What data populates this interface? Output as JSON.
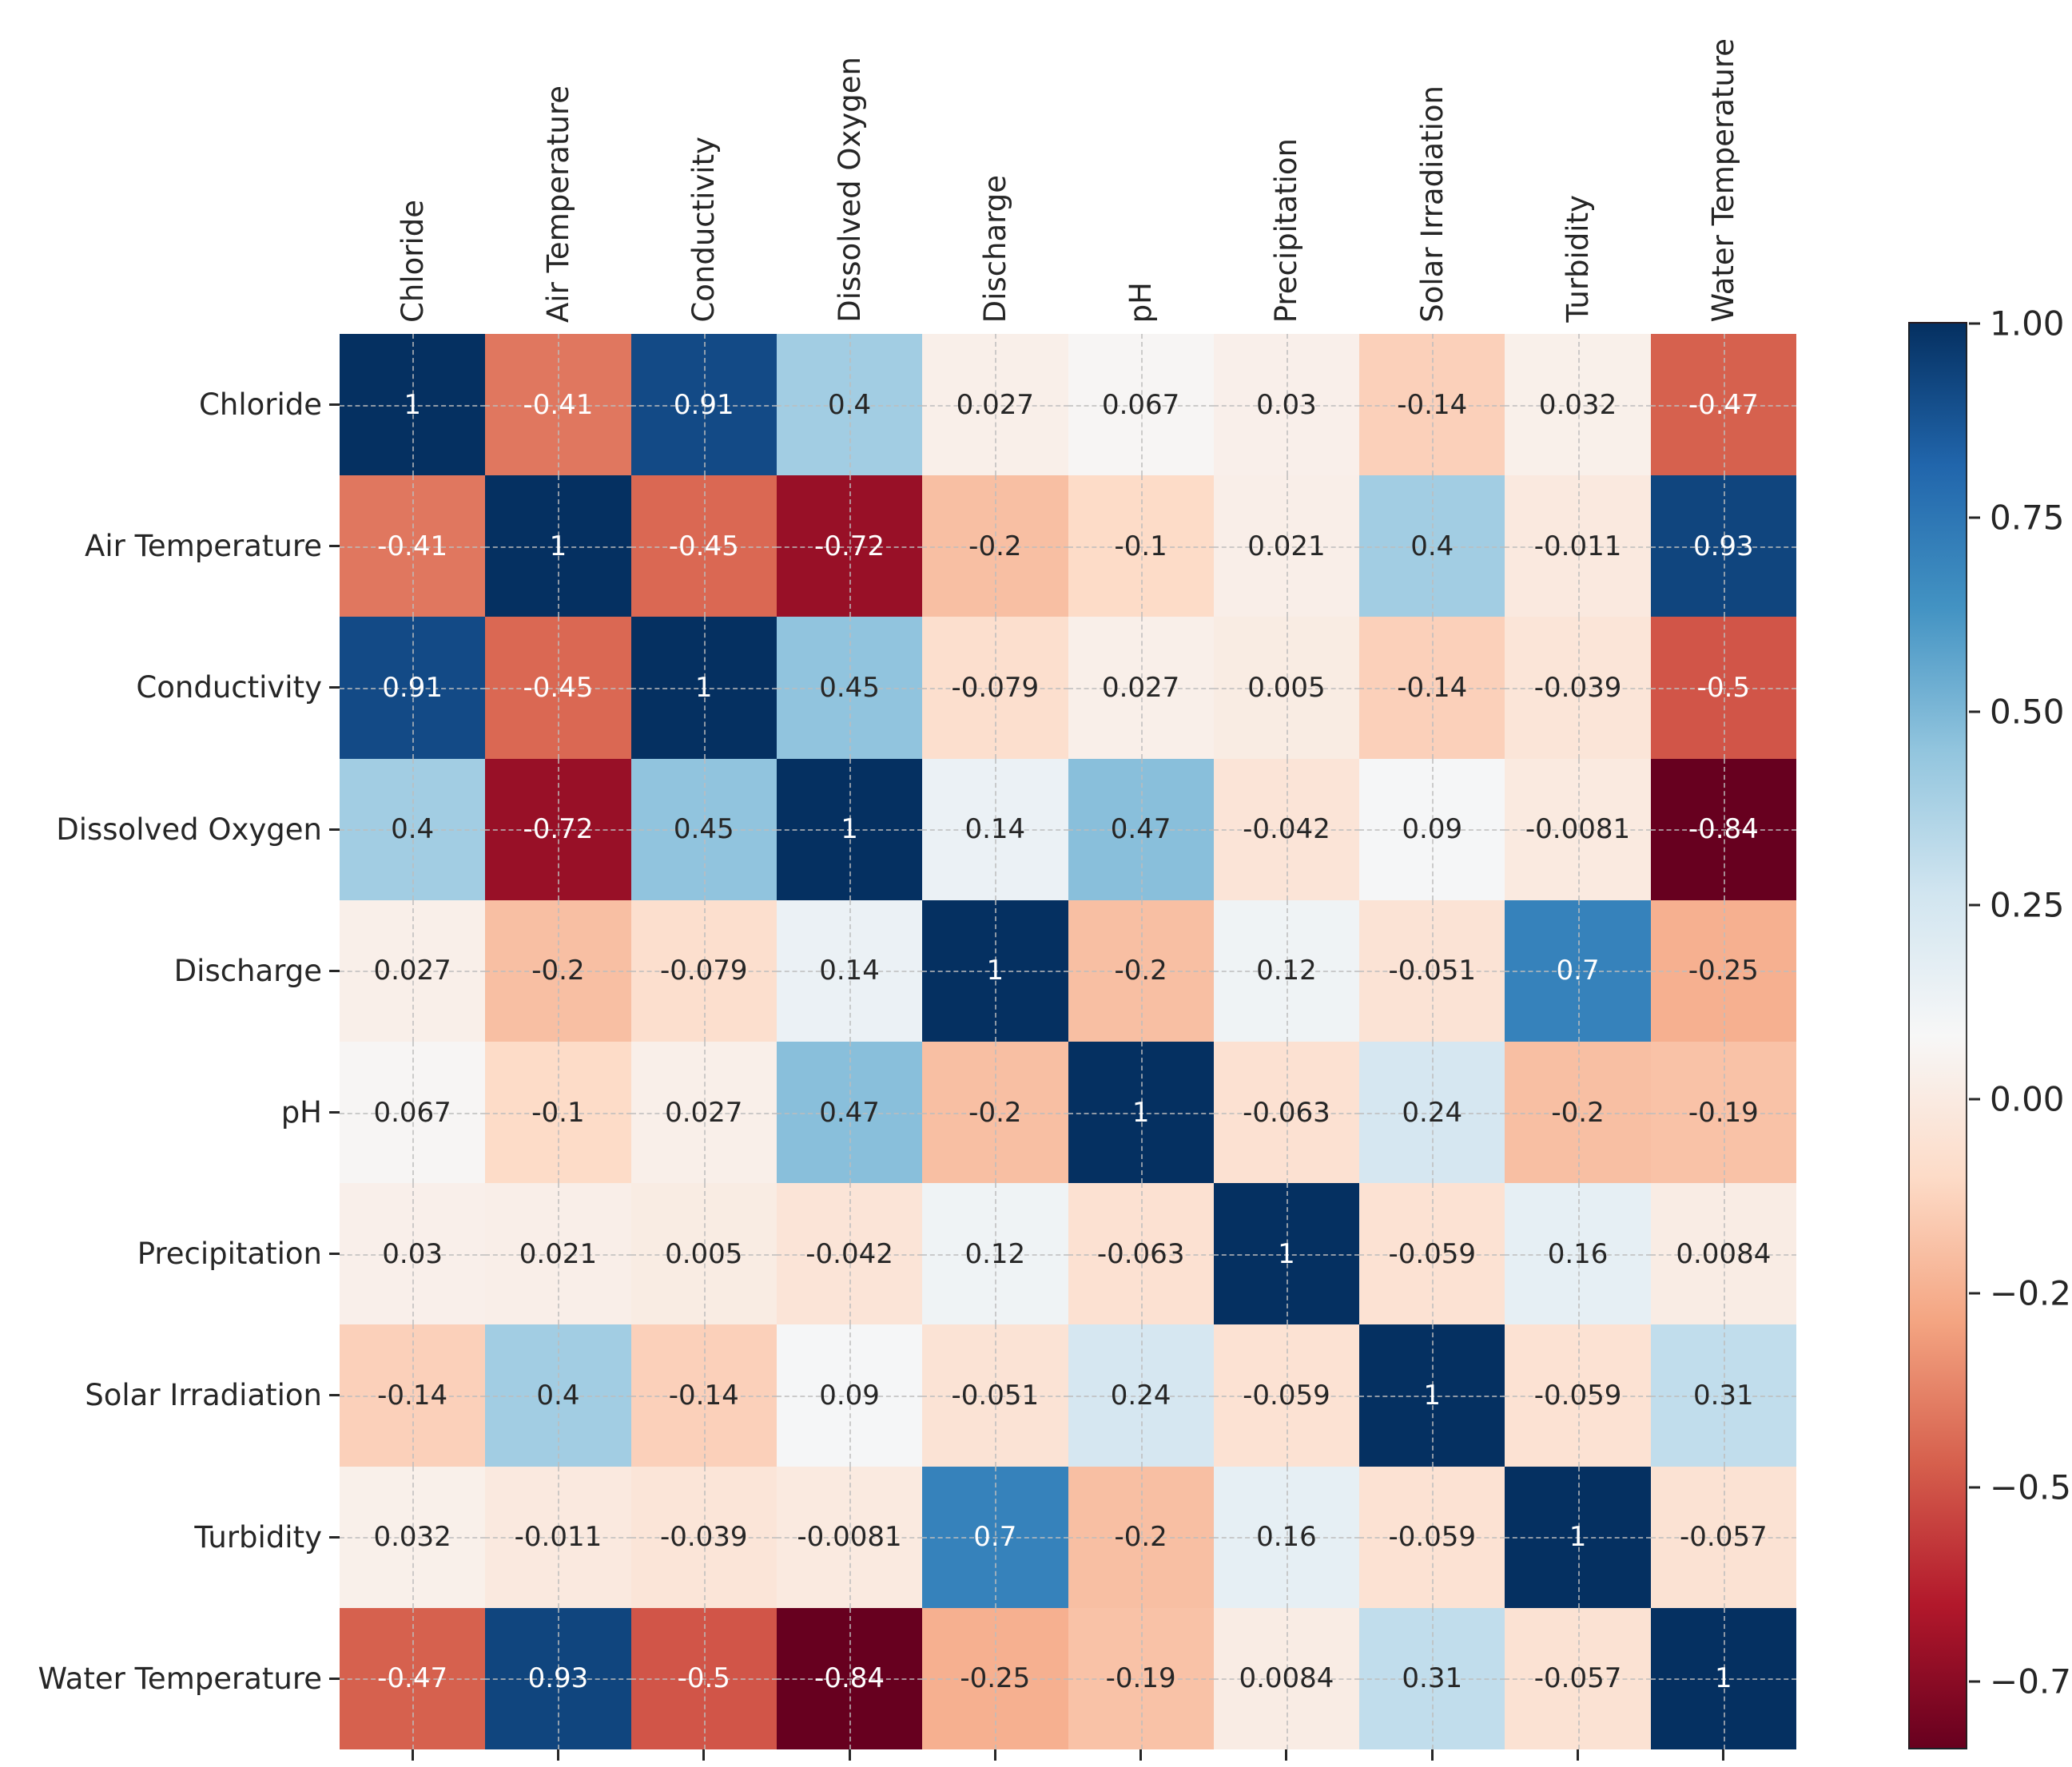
{
  "figure": {
    "background": "#ffffff",
    "text_color": "#262626"
  },
  "chart_data": {
    "type": "heatmap",
    "title": "",
    "xlabel": "",
    "ylabel": "",
    "variables": [
      "Chloride",
      "Air Temperature",
      "Conductivity",
      "Dissolved Oxygen",
      "Discharge",
      "pH",
      "Precipitation",
      "Solar Irradiation",
      "Turbidity",
      "Water Temperature"
    ],
    "matrix": [
      [
        "1",
        "-0.41",
        "0.91",
        "0.4",
        "0.027",
        "0.067",
        "0.03",
        "-0.14",
        "0.032",
        "-0.47"
      ],
      [
        "-0.41",
        "1",
        "-0.45",
        "-0.72",
        "-0.2",
        "-0.1",
        "0.021",
        "0.4",
        "-0.011",
        "0.93"
      ],
      [
        "0.91",
        "-0.45",
        "1",
        "0.45",
        "-0.079",
        "0.027",
        "0.005",
        "-0.14",
        "-0.039",
        "-0.5"
      ],
      [
        "0.4",
        "-0.72",
        "0.45",
        "1",
        "0.14",
        "0.47",
        "-0.042",
        "0.09",
        "-0.0081",
        "-0.84"
      ],
      [
        "0.027",
        "-0.2",
        "-0.079",
        "0.14",
        "1",
        "-0.2",
        "0.12",
        "-0.051",
        "0.7",
        "-0.25"
      ],
      [
        "0.067",
        "-0.1",
        "0.027",
        "0.47",
        "-0.2",
        "1",
        "-0.063",
        "0.24",
        "-0.2",
        "-0.19"
      ],
      [
        "0.03",
        "0.021",
        "0.005",
        "-0.042",
        "0.12",
        "-0.063",
        "1",
        "-0.059",
        "0.16",
        "0.0084"
      ],
      [
        "-0.14",
        "0.4",
        "-0.14",
        "0.09",
        "-0.051",
        "0.24",
        "-0.059",
        "1",
        "-0.059",
        "0.31"
      ],
      [
        "0.032",
        "-0.011",
        "-0.039",
        "-0.0081",
        "0.7",
        "-0.2",
        "0.16",
        "-0.059",
        "1",
        "-0.057"
      ],
      [
        "-0.47",
        "0.93",
        "-0.5",
        "-0.84",
        "-0.25",
        "-0.19",
        "0.0084",
        "0.31",
        "-0.057",
        "1"
      ]
    ],
    "vmin": -0.84,
    "vmax": 1.0,
    "colormap": {
      "name": "RdBu",
      "anchors": [
        "#67001f",
        "#b2182b",
        "#d6604d",
        "#f4a582",
        "#fddbc7",
        "#f7f7f7",
        "#d1e5f0",
        "#92c5de",
        "#4393c3",
        "#2166ac",
        "#053061"
      ]
    },
    "grid": "dashed",
    "annotated": true,
    "colorbar": {
      "position": "right",
      "tick_labels": [
        "1.00",
        "0.75",
        "0.50",
        "0.25",
        "0.00",
        "−0.25",
        "−0.50",
        "−0.75"
      ],
      "tick_values": [
        1.0,
        0.75,
        0.5,
        0.25,
        0.0,
        -0.25,
        -0.5,
        -0.75
      ]
    },
    "annotation_text_colors": {
      "light_cells": "#262626",
      "dark_cells": "#ffffff"
    }
  }
}
